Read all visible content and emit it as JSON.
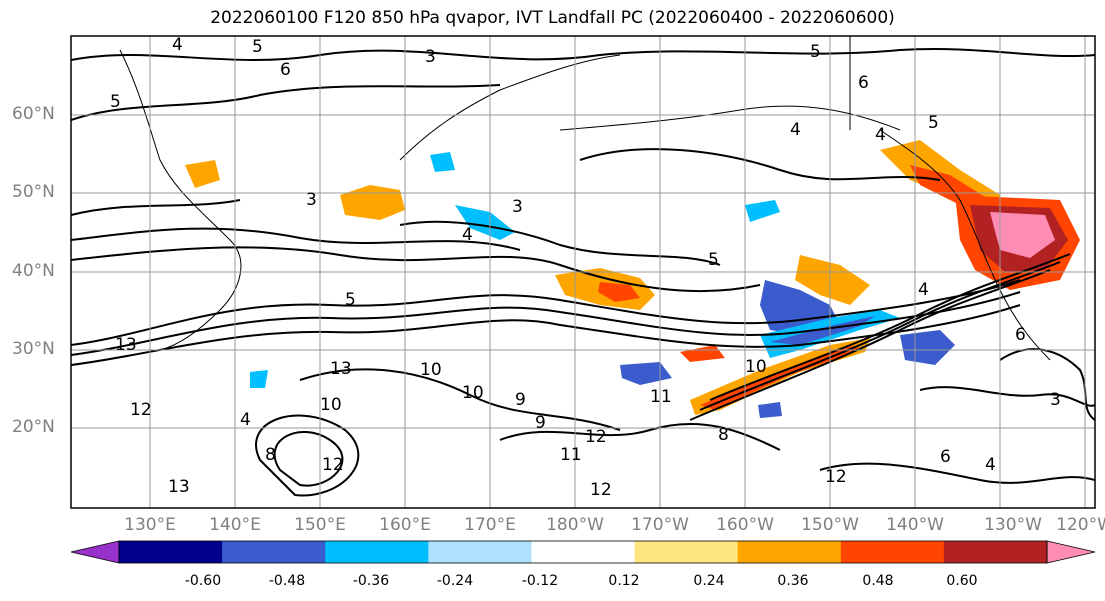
{
  "title": "2022060100 F120 850 hPa qvapor, IVT Landfall PC (2022060400 - 2022060600)",
  "map": {
    "lat_labels": [
      "60°N",
      "50°N",
      "40°N",
      "30°N",
      "20°N"
    ],
    "lon_labels": [
      "130°E",
      "140°E",
      "150°E",
      "160°E",
      "170°E",
      "180°W",
      "170°W",
      "160°W",
      "150°W",
      "140°W",
      "130°W",
      "120°W"
    ],
    "contour_labels": [
      "4",
      "5",
      "3",
      "6",
      "5",
      "5",
      "6",
      "4",
      "4",
      "5",
      "3",
      "3",
      "4",
      "5",
      "5",
      "4",
      "6",
      "4",
      "13",
      "13",
      "10",
      "10",
      "9",
      "9",
      "10",
      "11",
      "12",
      "11",
      "12",
      "13",
      "12",
      "10",
      "8",
      "8",
      "6",
      "4",
      "3",
      "12",
      "12"
    ],
    "contour_field": "850 hPa qvapor",
    "shading_field": "IVT Landfall PC"
  },
  "colorbar": {
    "ticks": [
      "-0.60",
      "-0.48",
      "-0.36",
      "-0.24",
      "-0.12",
      "0.12",
      "0.24",
      "0.36",
      "0.48",
      "0.60"
    ],
    "colors": [
      "#9932cc",
      "#00008b",
      "#3a5ccc",
      "#00bfff",
      "#b0e0ff",
      "#ffffff",
      "#ffe680",
      "#ffa500",
      "#ff4500",
      "#b22222",
      "#ff8cb4"
    ]
  }
}
